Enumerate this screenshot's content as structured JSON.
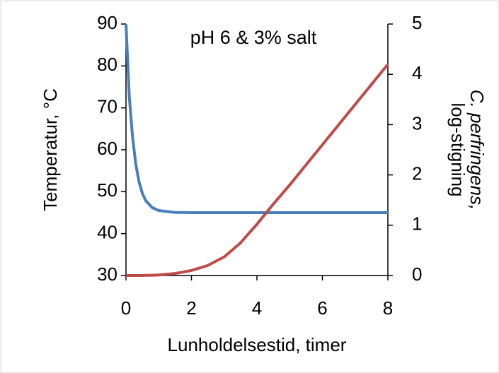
{
  "chart_data": {
    "type": "line",
    "annotation": "pH 6 & 3% salt",
    "x_label": "Lunholdelsestid, timer",
    "y_label": "Temperatur, °C",
    "y2_label": [
      "C. perfringens,",
      "log-stigning"
    ],
    "x": [
      0,
      0.1,
      0.2,
      0.3,
      0.4,
      0.5,
      0.6,
      0.8,
      1,
      1.5,
      2,
      2.5,
      3,
      3.5,
      4,
      4.5,
      5,
      6,
      7,
      8
    ],
    "series": [
      {
        "name": "Temperatur",
        "color": "#4a7ebb",
        "values": [
          90,
          72.8,
          63.1,
          56.5,
          52.3,
          49.6,
          47.9,
          46.2,
          45.5,
          45.05,
          45,
          45,
          45,
          45,
          45,
          45,
          45,
          45,
          45,
          45
        ]
      },
      {
        "name": "C. perfringens",
        "color": "#be4b48",
        "axis": "y2",
        "values": [
          0,
          0,
          0,
          0,
          0,
          0,
          0.003,
          0.006,
          0.01,
          0.04,
          0.1,
          0.2,
          0.37,
          0.65,
          1.02,
          1.42,
          1.8,
          2.6,
          3.4,
          4.2
        ]
      }
    ],
    "xlim": [
      0,
      8
    ],
    "xticks": [
      0,
      2,
      4,
      6,
      8
    ],
    "ylim": [
      30,
      90
    ],
    "yticks": [
      30,
      40,
      50,
      60,
      70,
      80,
      90
    ],
    "y2lim": [
      0,
      5
    ],
    "y2ticks": [
      0,
      1,
      2,
      3,
      4,
      5
    ]
  }
}
